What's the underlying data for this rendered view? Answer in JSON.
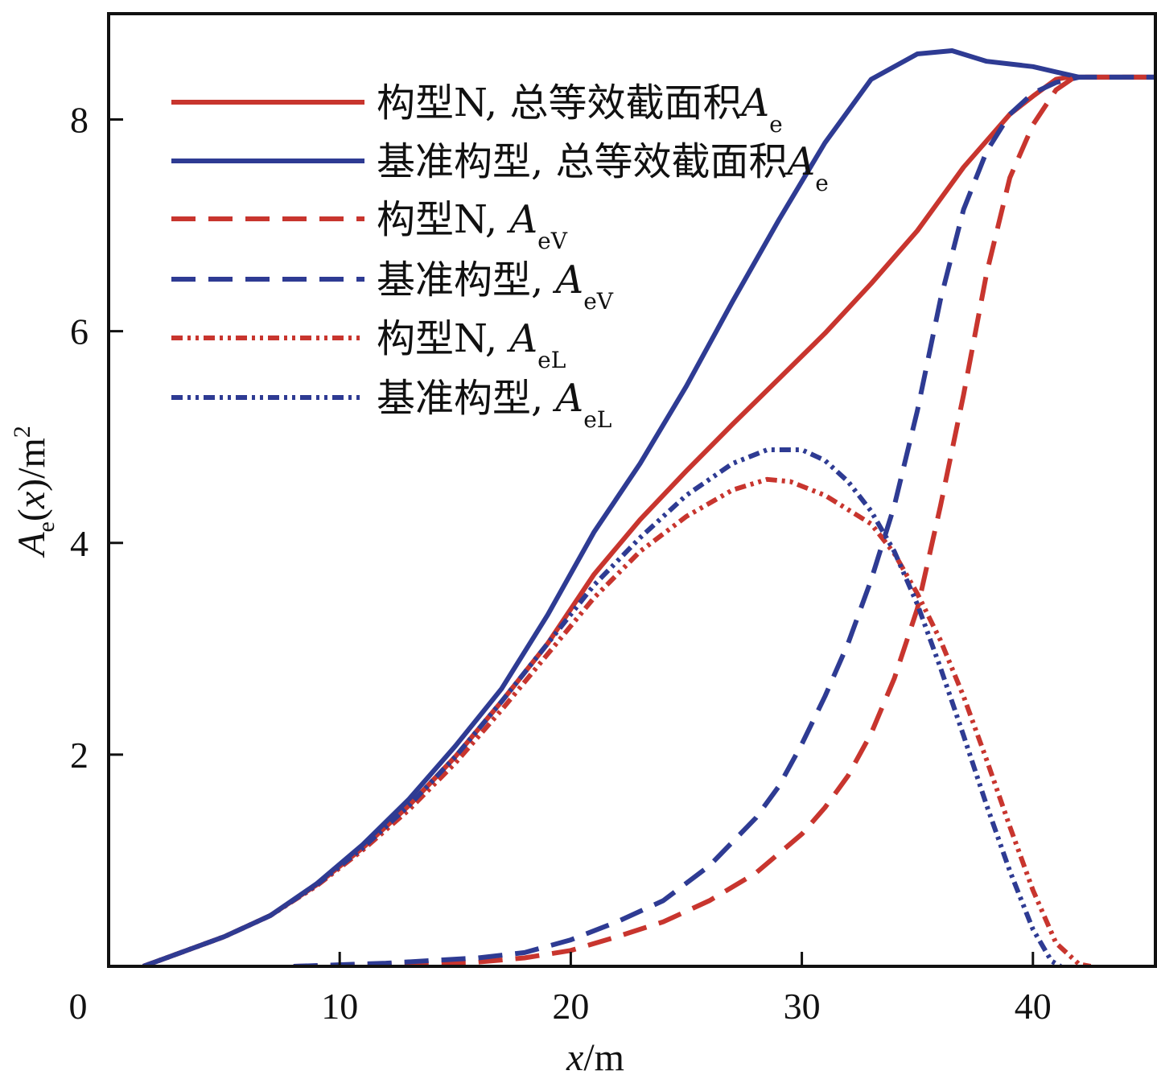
{
  "chart_data": {
    "type": "line",
    "title": "",
    "xlabel": {
      "symbol": "x",
      "unit": "/m"
    },
    "ylabel": {
      "symbol": "A",
      "sub": "e",
      "arg": "x",
      "unit": ")/m",
      "sup": "2"
    },
    "xlim": [
      0,
      45.3
    ],
    "ylim": [
      0,
      9.0
    ],
    "xticks": [
      0,
      10,
      20,
      30,
      40
    ],
    "xtick_labels": [
      "0",
      "10",
      "20",
      "30",
      "40"
    ],
    "yticks": [
      2,
      4,
      6,
      8
    ],
    "ytick_labels": [
      "2",
      "4",
      "6",
      "8"
    ],
    "grid": false,
    "legend_position": "top-left",
    "series": [
      {
        "id": "n-total",
        "label": "构型N, 总等效截面积",
        "sym": "A",
        "sub": "e",
        "color": "#c8352e",
        "dash": "solid",
        "x": [
          1.5,
          3,
          5,
          7,
          9,
          11,
          13,
          15,
          17,
          19,
          21,
          23,
          25,
          27,
          29,
          31,
          33,
          35,
          37,
          39,
          40,
          41,
          41.5,
          42,
          45.3
        ],
        "y": [
          0.0,
          0.12,
          0.28,
          0.48,
          0.77,
          1.12,
          1.52,
          1.98,
          2.5,
          3.05,
          3.7,
          4.22,
          4.68,
          5.12,
          5.55,
          5.98,
          6.45,
          6.95,
          7.55,
          8.05,
          8.22,
          8.38,
          8.4,
          8.4,
          8.4
        ]
      },
      {
        "id": "base-total",
        "label": "基准构型, 总等效截面积",
        "sym": "A",
        "sub": "e",
        "color": "#2e3b93",
        "dash": "solid",
        "x": [
          1.5,
          3,
          5,
          7,
          9,
          11,
          13,
          15,
          17,
          19,
          21,
          23,
          25,
          27,
          29,
          31,
          33,
          35,
          36.5,
          38,
          40,
          41,
          42,
          45.3
        ],
        "y": [
          0.0,
          0.12,
          0.28,
          0.48,
          0.78,
          1.15,
          1.58,
          2.08,
          2.62,
          3.32,
          4.1,
          4.75,
          5.48,
          6.28,
          7.05,
          7.78,
          8.38,
          8.62,
          8.65,
          8.55,
          8.5,
          8.45,
          8.4,
          8.4
        ]
      },
      {
        "id": "n-aev",
        "label": "构型N, ",
        "sym": "A",
        "sub": "eV",
        "color": "#c8352e",
        "dash": "long-dash",
        "x": [
          8,
          12,
          16,
          18,
          20,
          22,
          24,
          26,
          28,
          30,
          31,
          32,
          33,
          34,
          35,
          36,
          37,
          38,
          39,
          40,
          41,
          41.8,
          45.3
        ],
        "y": [
          0.0,
          0.02,
          0.04,
          0.08,
          0.15,
          0.28,
          0.42,
          0.62,
          0.88,
          1.25,
          1.5,
          1.8,
          2.2,
          2.72,
          3.38,
          4.35,
          5.4,
          6.55,
          7.45,
          7.95,
          8.28,
          8.4,
          8.4
        ]
      },
      {
        "id": "base-aev",
        "label": "基准构型, ",
        "sym": "A",
        "sub": "eV",
        "color": "#2e3b93",
        "dash": "long-dash",
        "x": [
          8,
          12,
          16,
          18,
          20,
          22,
          24,
          26,
          28,
          29,
          30,
          31,
          32,
          33,
          34,
          35,
          36,
          37,
          38,
          39,
          40,
          41,
          42,
          45.3
        ],
        "y": [
          0.0,
          0.03,
          0.08,
          0.13,
          0.25,
          0.42,
          0.62,
          0.95,
          1.4,
          1.7,
          2.1,
          2.55,
          3.05,
          3.65,
          4.35,
          5.25,
          6.3,
          7.15,
          7.7,
          8.05,
          8.25,
          8.35,
          8.4,
          8.4
        ]
      },
      {
        "id": "n-ael",
        "label": "构型N, ",
        "sym": "A",
        "sub": "eL",
        "color": "#c8352e",
        "dash": "dash-dot-dot",
        "x": [
          1.5,
          3,
          5,
          7,
          9,
          11,
          13,
          15,
          17,
          19,
          21,
          23,
          25,
          27,
          28.5,
          29.5,
          31,
          33,
          34,
          35,
          36,
          37,
          38,
          39,
          40,
          41,
          42,
          42.5
        ],
        "y": [
          0.0,
          0.12,
          0.28,
          0.48,
          0.76,
          1.1,
          1.48,
          1.92,
          2.42,
          2.95,
          3.48,
          3.92,
          4.25,
          4.5,
          4.6,
          4.58,
          4.45,
          4.18,
          3.9,
          3.52,
          3.08,
          2.55,
          1.95,
          1.32,
          0.72,
          0.22,
          0.02,
          0.0
        ]
      },
      {
        "id": "base-ael",
        "label": "基准构型, ",
        "sym": "A",
        "sub": "eL",
        "color": "#2e3b93",
        "dash": "dash-dot-dot",
        "x": [
          1.5,
          3,
          5,
          7,
          9,
          11,
          13,
          15,
          17,
          19,
          21,
          23,
          25,
          27,
          28.5,
          30,
          31,
          32,
          33,
          34,
          35,
          36,
          37,
          38,
          39,
          40,
          40.8,
          41.2
        ],
        "y": [
          0.0,
          0.12,
          0.28,
          0.48,
          0.77,
          1.12,
          1.52,
          1.98,
          2.5,
          3.05,
          3.6,
          4.05,
          4.45,
          4.75,
          4.88,
          4.88,
          4.78,
          4.58,
          4.3,
          3.92,
          3.42,
          2.82,
          2.18,
          1.52,
          0.9,
          0.35,
          0.05,
          0.0
        ]
      }
    ]
  }
}
